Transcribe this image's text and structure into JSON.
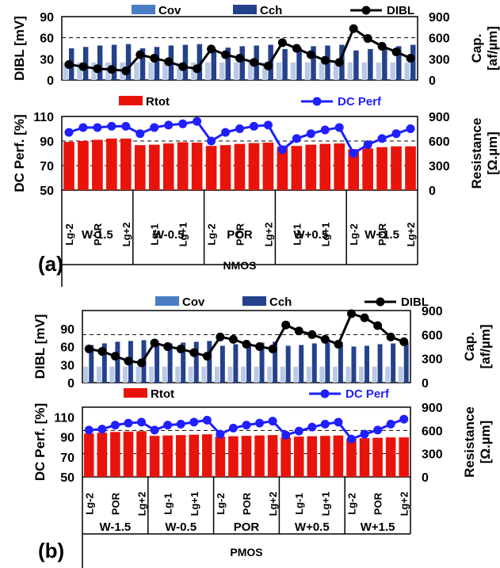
{
  "colors": {
    "cov": "#4a7cc4",
    "cch": "#24418c",
    "dibl": "#000000",
    "rtot": "#e8140c",
    "dcperf": "#1f1fff",
    "cov_light": "#b9c9e6"
  },
  "chart_data": [
    {
      "id": "a-top",
      "type": "bar+line",
      "legend": [
        "Cov",
        "Cch",
        "DIBL"
      ],
      "ylabel": "DIBL [mV]",
      "y2label": "Cap. [af/µm]",
      "y_ticks": [
        "0",
        "30",
        "60",
        "90"
      ],
      "y2_ticks": [
        "0",
        "300",
        "600",
        "900"
      ],
      "ylim": [
        0,
        90
      ],
      "y2lim": [
        0,
        900
      ],
      "series": [
        {
          "name": "Cov",
          "axis": "y2",
          "values": [
            250,
            250,
            250,
            250,
            250,
            250,
            250,
            250,
            250,
            250,
            250,
            250,
            250,
            250,
            250,
            250,
            250,
            250,
            250,
            250,
            250,
            250,
            250,
            250,
            250
          ]
        },
        {
          "name": "Cch",
          "axis": "y2",
          "values": [
            450,
            470,
            490,
            500,
            510,
            450,
            470,
            490,
            500,
            510,
            440,
            460,
            480,
            490,
            500,
            440,
            460,
            480,
            490,
            500,
            420,
            440,
            460,
            480,
            500
          ]
        },
        {
          "name": "DIBL",
          "axis": "y",
          "values": [
            22,
            19,
            16,
            15,
            13,
            36,
            31,
            26,
            19,
            16,
            44,
            36,
            31,
            25,
            20,
            53,
            45,
            36,
            28,
            25,
            73,
            59,
            48,
            40,
            31
          ]
        }
      ]
    },
    {
      "id": "a-bottom",
      "type": "bar+line",
      "legend": [
        "Rtot",
        "DC Perf"
      ],
      "ylabel": "DC Perf. [%]",
      "y2label": "Resistance [Ω.µm]",
      "y_ticks": [
        "50",
        "70",
        "90",
        "110"
      ],
      "y2_ticks": [
        "0",
        "300",
        "600",
        "900"
      ],
      "ylim": [
        50,
        110
      ],
      "y2lim": [
        0,
        900
      ],
      "series": [
        {
          "name": "Rtot",
          "axis": "y2",
          "values": [
            590,
            600,
            615,
            630,
            630,
            550,
            555,
            570,
            585,
            580,
            540,
            550,
            565,
            575,
            580,
            530,
            540,
            555,
            565,
            570,
            500,
            510,
            525,
            535,
            535
          ]
        },
        {
          "name": "DC Perf",
          "axis": "y",
          "values": [
            97,
            101,
            101,
            102,
            102,
            96,
            101,
            103,
            104,
            106,
            90,
            97,
            100,
            102,
            103,
            83,
            92,
            96,
            99,
            101,
            80,
            87,
            92,
            96,
            100
          ]
        }
      ],
      "group_ticks": [
        "Lg-2",
        "Lg-1",
        "POR",
        "Lg+1",
        "Lg+2"
      ],
      "groups": [
        "W-1.5",
        "W-0.5",
        "POR",
        "W+0.5",
        "W+1.5"
      ],
      "device": "NMOS",
      "panel": "(a)"
    },
    {
      "id": "b-top",
      "type": "bar+line",
      "legend": [
        "Cov",
        "Cch",
        "DIBL"
      ],
      "ylabel": "DIBL [mV]",
      "y2label": "Cap. [af/µm]",
      "y_ticks": [
        "0",
        "30",
        "60",
        "90"
      ],
      "y2_ticks": [
        "0",
        "300",
        "600",
        "900"
      ],
      "ylim": [
        0,
        120
      ],
      "y2lim": [
        0,
        900
      ],
      "series": [
        {
          "name": "Cov",
          "axis": "y2",
          "values": [
            200,
            200,
            200,
            200,
            200,
            200,
            200,
            200,
            200,
            200,
            200,
            200,
            200,
            200,
            200,
            200,
            200,
            200,
            200,
            200,
            200,
            200,
            200,
            200,
            200
          ]
        },
        {
          "name": "Cch",
          "axis": "y2",
          "values": [
            470,
            490,
            510,
            520,
            530,
            470,
            490,
            500,
            510,
            520,
            460,
            480,
            490,
            500,
            510,
            460,
            470,
            490,
            500,
            500,
            450,
            460,
            480,
            490,
            500
          ]
        },
        {
          "name": "DIBL",
          "axis": "y",
          "values": [
            56,
            52,
            44,
            36,
            33,
            66,
            60,
            56,
            50,
            44,
            76,
            72,
            64,
            60,
            56,
            96,
            86,
            80,
            72,
            64,
            130,
            108,
            95,
            76,
            68
          ]
        }
      ]
    },
    {
      "id": "b-bottom",
      "type": "bar+line",
      "legend": [
        "Rtot",
        "DC Perf"
      ],
      "ylabel": "DC Perf. [%]",
      "y2label": "Resistance [Ω.µm]",
      "y_ticks": [
        "50",
        "70",
        "90",
        "110"
      ],
      "y2_ticks": [
        "0",
        "300",
        "600",
        "900"
      ],
      "ylim": [
        50,
        120
      ],
      "y2lim": [
        0,
        900
      ],
      "series": [
        {
          "name": "Rtot",
          "axis": "y2",
          "values": [
            560,
            570,
            580,
            585,
            590,
            530,
            535,
            540,
            545,
            550,
            520,
            525,
            530,
            535,
            540,
            510,
            520,
            525,
            530,
            535,
            490,
            500,
            505,
            510,
            510
          ]
        },
        {
          "name": "DC Perf",
          "axis": "y",
          "values": [
            97,
            98,
            102,
            104,
            105,
            97,
            102,
            103,
            105,
            107,
            93,
            99,
            102,
            104,
            106,
            92,
            96,
            100,
            103,
            105,
            88,
            93,
            97,
            103,
            108
          ]
        }
      ],
      "group_ticks": [
        "Lg-2",
        "Lg-1",
        "POR",
        "Lg+1",
        "Lg+2"
      ],
      "groups": [
        "W-1.5",
        "W-0.5",
        "POR",
        "W+0.5",
        "W+1.5"
      ],
      "device": "PMOS",
      "panel": "(b)"
    }
  ]
}
